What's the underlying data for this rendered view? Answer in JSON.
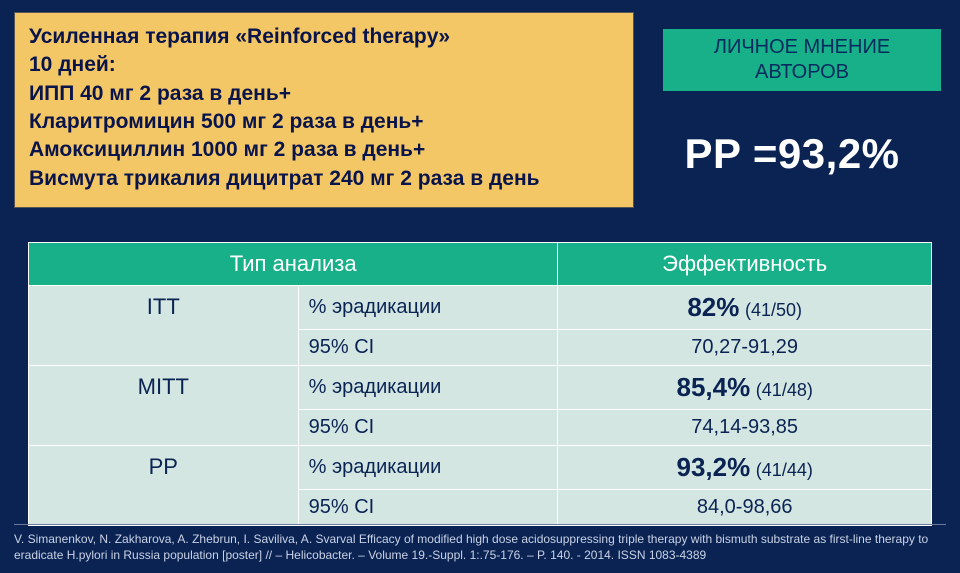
{
  "therapy": {
    "title_line1": "Усиленная терапия «Reinforced therapy»",
    "title_line2": "10 дней:",
    "drug1": "ИПП 40 мг 2 раза в день+",
    "drug2": "Кларитромицин 500 мг 2 раза в день+",
    "drug3": "Амоксициллин 1000 мг 2 раза в день+",
    "drug4": "Висмута трикалия дицитрат 240 мг 2 раза в день"
  },
  "opinion": {
    "line1": "ЛИЧНОЕ МНЕНИЕ",
    "line2": "АВТОРОВ"
  },
  "pp_stat": "PP =93,2%",
  "table": {
    "header_type": "Тип анализа",
    "header_eff": "Эффективность",
    "metric_erad": "% эрадикации",
    "metric_ci": "95% CI",
    "rows": [
      {
        "type": "ITT",
        "erad_main": "82%",
        "erad_sub": "(41/50)",
        "ci": "70,27-91,29"
      },
      {
        "type": "MITT",
        "erad_main": "85,4%",
        "erad_sub": "(41/48)",
        "ci": "74,14-93,85"
      },
      {
        "type": "PP",
        "erad_main": "93,2%",
        "erad_sub": "(41/44)",
        "ci": "84,0-98,66"
      }
    ]
  },
  "citation": "V. Simanenkov, N. Zakharova, A. Zhebrun, I. Saviliva, A. Svarval Efficacy of modified high dose acidosuppressing triple therapy with bismuth substrate as first-line therapy to eradicate H.pylori in Russia population [poster] // – Helicobacter. – Volume 19.-Suppl. 1:.75-176. – P. 140. - 2014. ISSN 1083-4389",
  "colors": {
    "page_bg": "#0a2352",
    "therapy_bg": "#f3c766",
    "badge_bg": "#17b089",
    "table_header_bg": "#17b089",
    "table_cell_bg": "#d3e6e2",
    "text_dark": "#0a2352",
    "text_light": "#ffffff",
    "citation_color": "#c9d2e6"
  }
}
